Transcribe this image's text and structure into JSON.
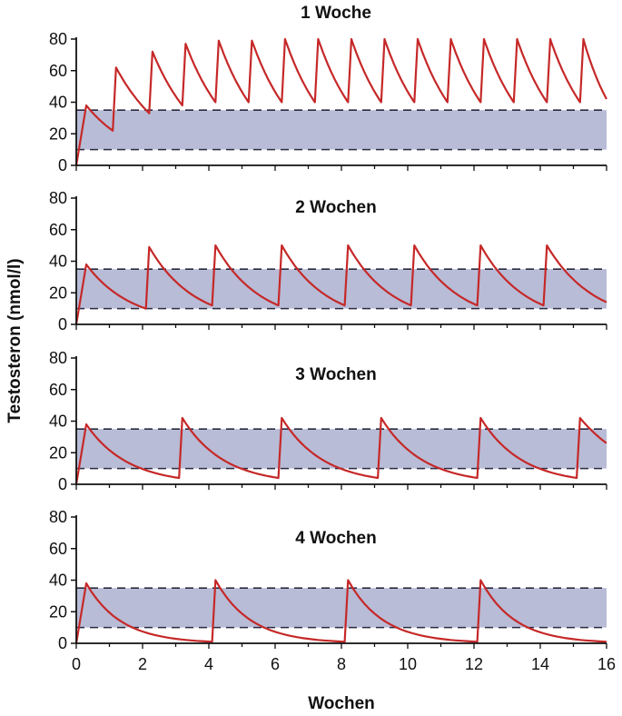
{
  "figure": {
    "ylabel": "Testosteron (nmol/l)",
    "xlabel": "Wochen"
  },
  "colors": {
    "curve": "#c62828",
    "band_fill": "#b8bcd6",
    "band_border": "#2a2a40",
    "axis": "#111111"
  },
  "chart_data": [
    {
      "type": "line",
      "title": "1 Woche",
      "x_ticks": [
        0,
        2,
        4,
        6,
        8,
        10,
        12,
        14,
        16
      ],
      "y_ticks": [
        0,
        20,
        40,
        60,
        80
      ],
      "xlim": [
        0,
        16
      ],
      "ylim": [
        0,
        80
      ],
      "reference_band": [
        10,
        35
      ],
      "series": [
        {
          "x": [
            0,
            0.3,
            1.1,
            1.2,
            2.2,
            2.3,
            3.2,
            3.3,
            4.2,
            4.3,
            5.2,
            5.3,
            6.2,
            6.3,
            7.2,
            7.3,
            8.2,
            8.3,
            9.2,
            9.3,
            10.2,
            10.3,
            11.2,
            11.3,
            12.2,
            12.3,
            13.2,
            13.3,
            14.2,
            14.3,
            15.2,
            15.3,
            16
          ],
          "y": [
            0,
            38,
            22,
            62,
            33,
            72,
            38,
            77,
            40,
            79,
            40,
            79,
            40,
            80,
            40,
            80,
            40,
            80,
            40,
            80,
            40,
            80,
            40,
            80,
            40,
            80,
            40,
            80,
            40,
            80,
            40,
            80,
            42
          ]
        }
      ]
    },
    {
      "type": "line",
      "title": "2 Wochen",
      "x_ticks": [
        0,
        2,
        4,
        6,
        8,
        10,
        12,
        14,
        16
      ],
      "y_ticks": [
        0,
        20,
        40,
        60,
        80
      ],
      "xlim": [
        0,
        16
      ],
      "ylim": [
        0,
        80
      ],
      "reference_band": [
        10,
        35
      ],
      "series": [
        {
          "x": [
            0,
            0.3,
            2.1,
            2.2,
            4.1,
            4.2,
            6.1,
            6.2,
            8.1,
            8.2,
            10.1,
            10.2,
            12.1,
            12.2,
            14.1,
            14.2,
            16
          ],
          "y": [
            0,
            38,
            10,
            49,
            12,
            50,
            12,
            50,
            12,
            50,
            12,
            50,
            12,
            50,
            12,
            50,
            14
          ]
        }
      ]
    },
    {
      "type": "line",
      "title": "3 Wochen",
      "x_ticks": [
        0,
        2,
        4,
        6,
        8,
        10,
        12,
        14,
        16
      ],
      "y_ticks": [
        0,
        20,
        40,
        60,
        80
      ],
      "xlim": [
        0,
        16
      ],
      "ylim": [
        0,
        80
      ],
      "reference_band": [
        10,
        35
      ],
      "series": [
        {
          "x": [
            0,
            0.3,
            3.1,
            3.2,
            6.1,
            6.2,
            9.1,
            9.2,
            12.1,
            12.2,
            15.1,
            15.2,
            16
          ],
          "y": [
            0,
            38,
            4,
            42,
            4,
            42,
            4,
            42,
            4,
            42,
            4,
            42,
            26
          ]
        }
      ]
    },
    {
      "type": "line",
      "title": "4  Wochen",
      "x_ticks": [
        0,
        2,
        4,
        6,
        8,
        10,
        12,
        14,
        16
      ],
      "y_ticks": [
        0,
        20,
        40,
        60,
        80
      ],
      "xlim": [
        0,
        16
      ],
      "ylim": [
        0,
        80
      ],
      "reference_band": [
        10,
        35
      ],
      "series": [
        {
          "x": [
            0,
            0.3,
            4.1,
            4.2,
            8.1,
            8.2,
            12.1,
            12.2,
            16
          ],
          "y": [
            0,
            38,
            1,
            40,
            1,
            40,
            1,
            40,
            1
          ]
        }
      ]
    }
  ]
}
